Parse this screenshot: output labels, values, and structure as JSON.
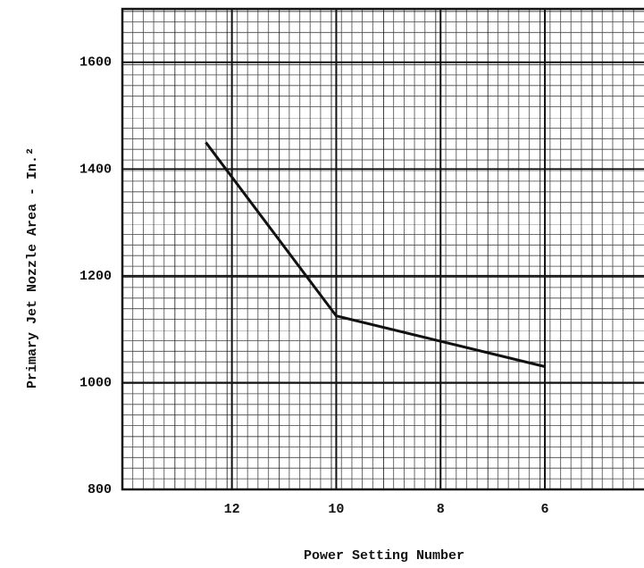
{
  "chart_data": {
    "type": "line",
    "x_label": "Power Setting Number",
    "y_label": "Primary Jet Nozzle Area - In.²",
    "x": [
      12.5,
      10,
      6
    ],
    "series": [
      {
        "name": null,
        "color": "#111111",
        "values": [
          1450,
          1125,
          1030
        ]
      }
    ],
    "xlim": [
      14.1,
      4.1
    ],
    "xticks": [
      12,
      10,
      8,
      6
    ],
    "ylim": [
      800,
      1700
    ],
    "yticks": [
      800,
      1000,
      1200,
      1400,
      1600
    ],
    "grid": true
  }
}
